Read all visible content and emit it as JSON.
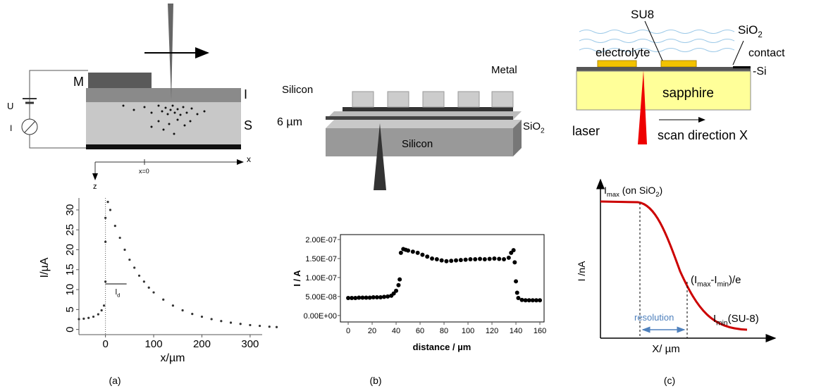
{
  "panel_labels": [
    "(a)",
    "(b)",
    "(c)"
  ],
  "diagrams": {
    "a": [
      [
        "U"
      ],
      [
        "I"
      ],
      [
        "M"
      ],
      [
        "I"
      ],
      [
        "S"
      ],
      [
        "x"
      ],
      [
        "x=0"
      ],
      [
        "z"
      ]
    ],
    "b": [
      [
        "Metal"
      ],
      [
        "Silicon"
      ],
      [
        "6 µm"
      ],
      [
        "SiO",
        "2"
      ],
      [
        "Silicon"
      ]
    ],
    "c": [
      [
        "SU8"
      ],
      [
        "SiO",
        "2"
      ],
      [
        "electrolyte"
      ],
      [
        "contact"
      ],
      [
        "-Si"
      ],
      [
        "sapphire"
      ],
      [
        "laser"
      ],
      [
        "scan direction X"
      ]
    ],
    "c_plot": [
      [
        "I /nA"
      ],
      [
        "X/ µm"
      ],
      [
        "I",
        "max",
        " (on SiO",
        "2",
        ")"
      ],
      [
        "(I",
        "max",
        "-I",
        "min",
        ")/e"
      ],
      [
        "I",
        "min",
        "(SU-8)"
      ],
      [
        "resolution"
      ]
    ]
  },
  "chart_data": [
    {
      "type": "scatter",
      "xlabel": "x/µm",
      "ylabel": "I/µA",
      "annotation": [
        "l",
        "d"
      ],
      "color": "#333333",
      "x": [
        -55,
        -45,
        -35,
        -25,
        -15,
        -8,
        -3,
        0,
        0,
        0,
        5,
        10,
        20,
        30,
        40,
        50,
        60,
        70,
        80,
        90,
        100,
        120,
        140,
        160,
        180,
        200,
        220,
        240,
        260,
        280,
        300,
        320,
        340,
        355
      ],
      "values": [
        2.6,
        2.7,
        2.9,
        3.2,
        3.8,
        4.8,
        6,
        12,
        22,
        28,
        32,
        30,
        26,
        23,
        20,
        17.5,
        15.5,
        13.5,
        12,
        10.5,
        9.3,
        7.5,
        6,
        4.8,
        3.9,
        3.2,
        2.6,
        2.1,
        1.7,
        1.4,
        1.1,
        0.9,
        0.7,
        0.6
      ],
      "xlim": [
        -55,
        325
      ],
      "xticks": [
        0,
        100,
        200,
        300
      ],
      "ylim": [
        -1.3,
        33
      ],
      "yticks": [
        0,
        5,
        10,
        15,
        20,
        25,
        30
      ]
    },
    {
      "type": "scatter",
      "xlabel": "distance / µm",
      "ylabel": "I / A",
      "color": "#000000",
      "x": [
        0,
        3,
        6,
        9,
        12,
        15,
        18,
        21,
        24,
        27,
        30,
        33,
        36,
        38,
        40,
        42,
        43,
        44,
        46,
        48,
        50,
        54,
        58,
        62,
        66,
        70,
        74,
        78,
        82,
        86,
        90,
        94,
        98,
        102,
        106,
        110,
        114,
        118,
        122,
        126,
        130,
        134,
        136,
        138,
        139,
        140,
        141,
        142,
        145,
        148,
        151,
        154,
        157,
        160
      ],
      "values": [
        4.6e-08,
        4.6e-08,
        4.6e-08,
        4.7e-08,
        4.7e-08,
        4.7e-08,
        4.7e-08,
        4.8e-08,
        4.8e-08,
        4.8e-08,
        4.9e-08,
        5e-08,
        5.2e-08,
        5.8e-08,
        6.5e-08,
        8e-08,
        9.5e-08,
        1.65e-07,
        1.75e-07,
        1.73e-07,
        1.71e-07,
        1.68e-07,
        1.65e-07,
        1.6e-07,
        1.55e-07,
        1.5e-07,
        1.48e-07,
        1.45e-07,
        1.43e-07,
        1.44e-07,
        1.45e-07,
        1.46e-07,
        1.47e-07,
        1.48e-07,
        1.48e-07,
        1.49e-07,
        1.48e-07,
        1.49e-07,
        1.5e-07,
        1.49e-07,
        1.48e-07,
        1.52e-07,
        1.65e-07,
        1.72e-07,
        1.4e-07,
        9e-08,
        6e-08,
        4.6e-08,
        4.1e-08,
        4e-08,
        4e-08,
        4e-08,
        4e-08,
        4e-08
      ],
      "xlim": [
        -6.5,
        163.5
      ],
      "xticks": [
        0,
        20,
        40,
        60,
        80,
        100,
        120,
        140,
        160
      ],
      "ylim": [
        -1.7e-08,
        2.13e-07
      ],
      "yticks": [
        {
          "value": 0,
          "label": "0.00E+00"
        },
        {
          "value": 5e-08,
          "label": "5.00E-08"
        },
        {
          "value": 1e-07,
          "label": "1.00E-07"
        },
        {
          "value": 1.5e-07,
          "label": "1.50E-07"
        },
        {
          "value": 2e-07,
          "label": "2.00E-07"
        }
      ]
    }
  ]
}
